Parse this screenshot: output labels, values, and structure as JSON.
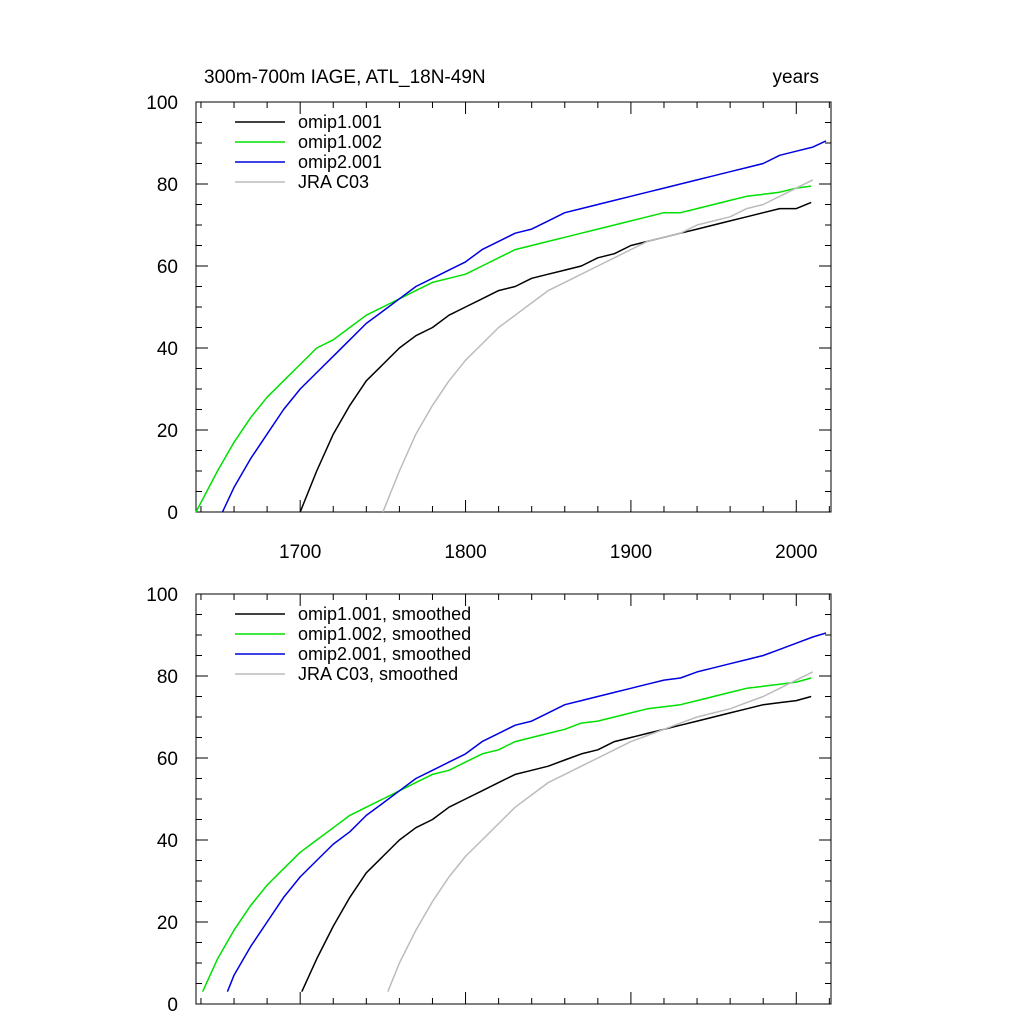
{
  "chart_data": [
    {
      "type": "line",
      "title_left": "300m-700m IAGE, ATL_18N-49N",
      "title_right": "years",
      "xlim": [
        1637,
        2021
      ],
      "ylim": [
        0,
        100
      ],
      "x_ticks": [
        1700,
        1800,
        1900,
        2000
      ],
      "x_tick_labels": [
        "1700",
        "1800",
        "1900",
        "2000"
      ],
      "y_ticks": [
        0,
        20,
        40,
        60,
        80,
        100
      ],
      "y_tick_labels": [
        "0",
        "20",
        "40",
        "60",
        "80",
        "100"
      ],
      "grid": false,
      "legend_position": "top-left",
      "series": [
        {
          "name": "omip1.001",
          "color": "#000000",
          "x": [
            1700,
            1710,
            1720,
            1730,
            1740,
            1750,
            1760,
            1770,
            1780,
            1790,
            1800,
            1810,
            1820,
            1830,
            1840,
            1850,
            1860,
            1870,
            1880,
            1890,
            1900,
            1910,
            1920,
            1930,
            1940,
            1950,
            1960,
            1970,
            1980,
            1990,
            2000,
            2009
          ],
          "y": [
            0,
            10,
            19,
            26,
            32,
            36,
            40,
            43,
            45,
            48,
            50,
            52,
            54,
            55,
            57,
            58,
            59,
            60,
            62,
            63,
            65,
            66,
            67,
            68,
            69,
            70,
            71,
            72,
            73,
            74,
            74,
            75.5
          ]
        },
        {
          "name": "omip1.002",
          "color": "#00e000",
          "x": [
            1637,
            1650,
            1660,
            1670,
            1680,
            1690,
            1700,
            1710,
            1720,
            1730,
            1740,
            1750,
            1760,
            1770,
            1780,
            1790,
            1800,
            1810,
            1820,
            1830,
            1840,
            1850,
            1860,
            1870,
            1880,
            1890,
            1900,
            1910,
            1920,
            1930,
            1940,
            1950,
            1960,
            1970,
            1980,
            1990,
            2000,
            2009
          ],
          "y": [
            0,
            10,
            17,
            23,
            28,
            32,
            36,
            40,
            42,
            45,
            48,
            50,
            52,
            54,
            56,
            57,
            58,
            60,
            62,
            64,
            65,
            66,
            67,
            68,
            69,
            70,
            71,
            72,
            73,
            73,
            74,
            75,
            76,
            77,
            77.5,
            78,
            79,
            79.5
          ]
        },
        {
          "name": "omip2.001",
          "color": "#0000e0",
          "x": [
            1653,
            1660,
            1670,
            1680,
            1690,
            1700,
            1710,
            1720,
            1730,
            1740,
            1750,
            1760,
            1770,
            1780,
            1790,
            1800,
            1810,
            1820,
            1830,
            1840,
            1850,
            1860,
            1870,
            1880,
            1890,
            1900,
            1910,
            1920,
            1930,
            1940,
            1950,
            1960,
            1970,
            1980,
            1990,
            2000,
            2010,
            2018
          ],
          "y": [
            0,
            6,
            13,
            19,
            25,
            30,
            34,
            38,
            42,
            46,
            49,
            52,
            55,
            57,
            59,
            61,
            64,
            66,
            68,
            69,
            71,
            73,
            74,
            75,
            76,
            77,
            78,
            79,
            80,
            81,
            82,
            83,
            84,
            85,
            87,
            88,
            89,
            90.5
          ]
        },
        {
          "name": "JRA C03",
          "color": "#bcbcbc",
          "x": [
            1750,
            1760,
            1770,
            1780,
            1790,
            1800,
            1810,
            1820,
            1830,
            1840,
            1850,
            1860,
            1870,
            1880,
            1890,
            1900,
            1910,
            1920,
            1930,
            1940,
            1950,
            1960,
            1970,
            1980,
            1990,
            2000,
            2010
          ],
          "y": [
            0,
            10,
            19,
            26,
            32,
            37,
            41,
            45,
            48,
            51,
            54,
            56,
            58,
            60,
            62,
            64,
            66,
            67,
            68,
            70,
            71,
            72,
            74,
            75,
            77,
            79,
            81
          ]
        }
      ]
    },
    {
      "type": "line",
      "xlim": [
        1637,
        2021
      ],
      "ylim": [
        0,
        100
      ],
      "x_ticks": [
        1700,
        1800,
        1900,
        2000
      ],
      "y_ticks": [
        0,
        20,
        40,
        60,
        80,
        100
      ],
      "y_tick_labels": [
        "0",
        "20",
        "40",
        "60",
        "80",
        "100"
      ],
      "grid": false,
      "legend_position": "top-left",
      "series": [
        {
          "name": "omip1.001, smoothed",
          "color": "#000000",
          "x": [
            1701,
            1710,
            1720,
            1730,
            1740,
            1750,
            1760,
            1770,
            1780,
            1790,
            1800,
            1810,
            1820,
            1830,
            1840,
            1850,
            1860,
            1870,
            1880,
            1890,
            1900,
            1910,
            1920,
            1930,
            1940,
            1950,
            1960,
            1970,
            1980,
            1990,
            2000,
            2009
          ],
          "y": [
            3,
            11,
            19,
            26,
            32,
            36,
            40,
            43,
            45,
            48,
            50,
            52,
            54,
            56,
            57,
            58,
            59.5,
            61,
            62,
            64,
            65,
            66,
            67,
            68,
            69,
            70,
            71,
            72,
            73,
            73.5,
            74,
            75
          ]
        },
        {
          "name": "omip1.002, smoothed",
          "color": "#00e000",
          "x": [
            1641,
            1650,
            1660,
            1670,
            1680,
            1690,
            1700,
            1710,
            1720,
            1730,
            1740,
            1750,
            1760,
            1770,
            1780,
            1790,
            1800,
            1810,
            1820,
            1830,
            1840,
            1850,
            1860,
            1870,
            1880,
            1890,
            1900,
            1910,
            1920,
            1930,
            1940,
            1950,
            1960,
            1970,
            1980,
            1990,
            2000,
            2009
          ],
          "y": [
            3,
            11,
            18,
            24,
            29,
            33,
            37,
            40,
            43,
            46,
            48,
            50,
            52,
            54,
            56,
            57,
            59,
            61,
            62,
            64,
            65,
            66,
            67,
            68.5,
            69,
            70,
            71,
            72,
            72.5,
            73,
            74,
            75,
            76,
            77,
            77.5,
            78,
            78.5,
            79.5
          ]
        },
        {
          "name": "omip2.001, smoothed",
          "color": "#0000e0",
          "x": [
            1656,
            1660,
            1670,
            1680,
            1690,
            1700,
            1710,
            1720,
            1730,
            1740,
            1750,
            1760,
            1770,
            1780,
            1790,
            1800,
            1810,
            1820,
            1830,
            1840,
            1850,
            1860,
            1870,
            1880,
            1890,
            1900,
            1910,
            1920,
            1930,
            1940,
            1950,
            1960,
            1970,
            1980,
            1990,
            2000,
            2010,
            2018
          ],
          "y": [
            3,
            7,
            14,
            20,
            26,
            31,
            35,
            39,
            42,
            46,
            49,
            52,
            55,
            57,
            59,
            61,
            64,
            66,
            68,
            69,
            71,
            73,
            74,
            75,
            76,
            77,
            78,
            79,
            79.5,
            81,
            82,
            83,
            84,
            85,
            86.5,
            88,
            89.5,
            90.5
          ]
        },
        {
          "name": "JRA C03, smoothed",
          "color": "#bcbcbc",
          "x": [
            1753,
            1760,
            1770,
            1780,
            1790,
            1800,
            1810,
            1820,
            1830,
            1840,
            1850,
            1860,
            1870,
            1880,
            1890,
            1900,
            1910,
            1920,
            1930,
            1940,
            1950,
            1960,
            1970,
            1980,
            1990,
            2000,
            2010
          ],
          "y": [
            3,
            10,
            18,
            25,
            31,
            36,
            40,
            44,
            48,
            51,
            54,
            56,
            58,
            60,
            62,
            64,
            65.5,
            67,
            68.5,
            70,
            71,
            72,
            73.5,
            75,
            77,
            79,
            81
          ]
        }
      ]
    }
  ]
}
